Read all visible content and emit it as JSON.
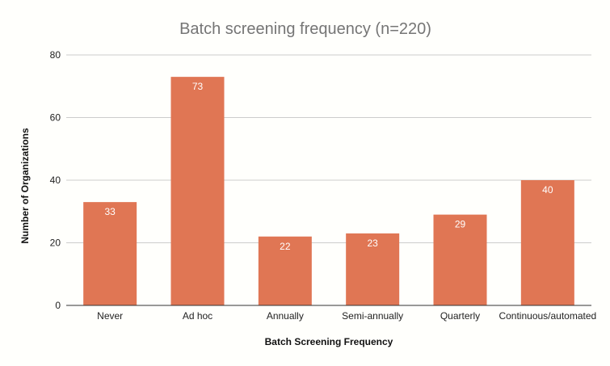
{
  "chart_data": {
    "type": "bar",
    "title": "Batch screening frequency (n=220)",
    "xlabel": "Batch Screening Frequency",
    "ylabel": "Number of Organizations",
    "categories": [
      "Never",
      "Ad hoc",
      "Annually",
      "Semi-annually",
      "Quarterly",
      "Continuous/automated"
    ],
    "values": [
      33,
      73,
      22,
      23,
      29,
      40
    ],
    "ylim": [
      0,
      80
    ],
    "yticks": [
      0,
      20,
      40,
      60,
      80
    ],
    "grid": true,
    "legend": "none",
    "bar_color": "#e07654"
  }
}
